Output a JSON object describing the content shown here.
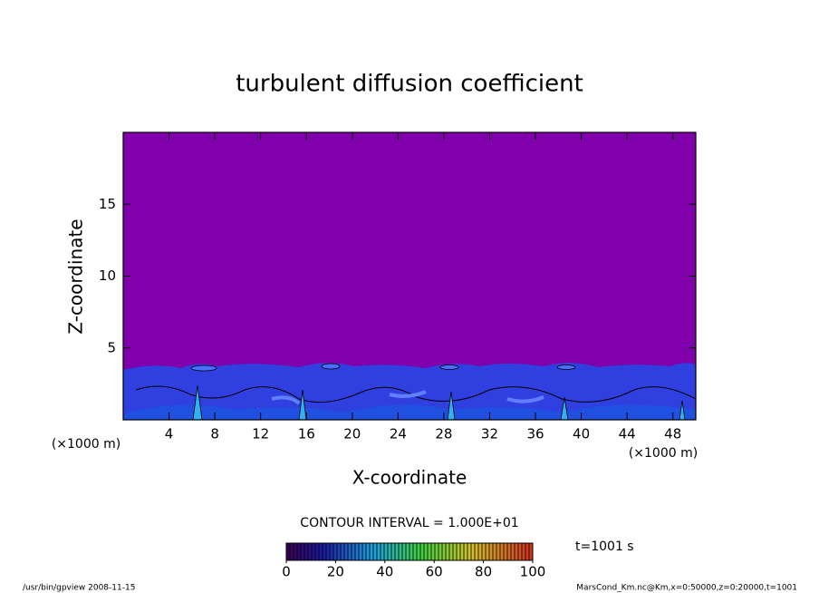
{
  "chart_data": {
    "type": "contour",
    "title": "turbulent diffusion coefficient",
    "x_label": "X-coordinate",
    "y_label": "Z-coordinate",
    "x_unit": "(×1000 m)",
    "y_unit": "(×1000 m)",
    "xlim": [
      0,
      50
    ],
    "xticks": [
      4,
      8,
      12,
      16,
      20,
      24,
      28,
      32,
      36,
      40,
      44,
      48
    ],
    "ylim": [
      0,
      20
    ],
    "yticks": [
      5,
      10,
      15
    ],
    "contour_interval": "CONTOUR INTERVAL = 1.000E+01",
    "time_label": "t=1001 s",
    "colorbar": {
      "clim": [
        0,
        100
      ],
      "ticks": [
        0,
        20,
        40,
        60,
        80,
        100
      ]
    },
    "footer_left": "/usr/bin/gpview  2008-11-15",
    "footer_right": "MarsCond_Km.nc@Km,x=0:50000,z=0:20000,t=1001"
  }
}
